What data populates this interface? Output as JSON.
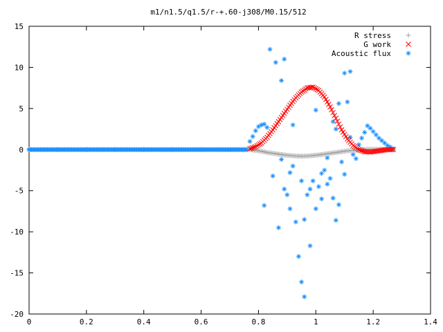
{
  "chart_data": {
    "type": "scatter",
    "title": "m1/n1.5/q1.5/r-+.60-j308/M0.15/512",
    "xlim": [
      0,
      1.4
    ],
    "ylim": [
      -20,
      15
    ],
    "x_ticks": [
      "0",
      "0.2",
      "0.4",
      "0.6",
      "0.8",
      "1",
      "1.2",
      "1.4"
    ],
    "y_ticks": [
      "15",
      "10",
      "5",
      "0",
      "-5",
      "-10",
      "-15",
      "-20"
    ],
    "legend_position": "top-right",
    "grid": false,
    "series": [
      {
        "name": "R stress",
        "marker": "+",
        "color": "#a0a0a0",
        "points": [
          [
            0.77,
            0.0
          ],
          [
            0.79,
            -0.1
          ],
          [
            0.81,
            -0.2
          ],
          [
            0.83,
            -0.35
          ],
          [
            0.85,
            -0.45
          ],
          [
            0.87,
            -0.55
          ],
          [
            0.89,
            -0.65
          ],
          [
            0.91,
            -0.72
          ],
          [
            0.93,
            -0.78
          ],
          [
            0.95,
            -0.8
          ],
          [
            0.97,
            -0.78
          ],
          [
            0.99,
            -0.72
          ],
          [
            1.01,
            -0.65
          ],
          [
            1.03,
            -0.55
          ],
          [
            1.05,
            -0.45
          ],
          [
            1.07,
            -0.35
          ],
          [
            1.09,
            -0.25
          ],
          [
            1.11,
            -0.15
          ],
          [
            1.13,
            -0.1
          ],
          [
            1.15,
            -0.05
          ],
          [
            1.17,
            0.0
          ],
          [
            1.19,
            0.05
          ],
          [
            1.21,
            0.05
          ],
          [
            1.23,
            0.05
          ],
          [
            1.25,
            0.02
          ],
          [
            1.27,
            0.0
          ]
        ]
      },
      {
        "name": "G work",
        "marker": "x",
        "color": "#ff0000",
        "points": [
          [
            0.77,
            0.1
          ],
          [
            0.79,
            0.35
          ],
          [
            0.81,
            0.8
          ],
          [
            0.83,
            1.5
          ],
          [
            0.85,
            2.4
          ],
          [
            0.87,
            3.4
          ],
          [
            0.89,
            4.4
          ],
          [
            0.91,
            5.4
          ],
          [
            0.93,
            6.3
          ],
          [
            0.95,
            7.0
          ],
          [
            0.97,
            7.5
          ],
          [
            0.99,
            7.6
          ],
          [
            1.01,
            7.2
          ],
          [
            1.03,
            6.4
          ],
          [
            1.05,
            5.2
          ],
          [
            1.07,
            3.8
          ],
          [
            1.09,
            2.4
          ],
          [
            1.11,
            1.3
          ],
          [
            1.13,
            0.5
          ],
          [
            1.15,
            0.0
          ],
          [
            1.17,
            -0.25
          ],
          [
            1.19,
            -0.3
          ],
          [
            1.21,
            -0.2
          ],
          [
            1.23,
            -0.1
          ],
          [
            1.25,
            0.0
          ],
          [
            1.27,
            0.0
          ]
        ]
      },
      {
        "name": "Acoustic flux",
        "marker": "*",
        "color": "#1e90ff",
        "points": [
          [
            0.0,
            0.0
          ],
          [
            0.1,
            0.0
          ],
          [
            0.2,
            0.0
          ],
          [
            0.3,
            0.0
          ],
          [
            0.4,
            0.0
          ],
          [
            0.5,
            0.0
          ],
          [
            0.6,
            0.0
          ],
          [
            0.7,
            0.0
          ],
          [
            0.76,
            0.0
          ],
          [
            0.77,
            1.0
          ],
          [
            0.78,
            1.6
          ],
          [
            0.79,
            2.3
          ],
          [
            0.8,
            2.8
          ],
          [
            0.81,
            3.0
          ],
          [
            0.82,
            3.1
          ],
          [
            0.83,
            2.7
          ],
          [
            0.84,
            12.2
          ],
          [
            0.85,
            -3.2
          ],
          [
            0.86,
            10.6
          ],
          [
            0.87,
            -9.5
          ],
          [
            0.88,
            8.4
          ],
          [
            0.89,
            11.0
          ],
          [
            0.9,
            -5.5
          ],
          [
            0.91,
            -2.8
          ],
          [
            0.92,
            3.0
          ],
          [
            0.93,
            -8.8
          ],
          [
            0.94,
            -13.0
          ],
          [
            0.95,
            -16.1
          ],
          [
            0.96,
            -17.9
          ],
          [
            0.97,
            -5.5
          ],
          [
            0.98,
            -11.7
          ],
          [
            0.99,
            -3.8
          ],
          [
            1.0,
            -7.2
          ],
          [
            1.01,
            -4.5
          ],
          [
            1.02,
            -6.0
          ],
          [
            1.03,
            -2.5
          ],
          [
            1.04,
            -1.0
          ],
          [
            1.05,
            -3.5
          ],
          [
            1.06,
            -5.9
          ],
          [
            1.07,
            -8.6
          ],
          [
            1.08,
            -6.7
          ],
          [
            1.09,
            -1.5
          ],
          [
            1.1,
            9.3
          ],
          [
            1.11,
            5.8
          ],
          [
            1.12,
            1.5
          ],
          [
            1.13,
            -0.6
          ],
          [
            1.14,
            -1.1
          ],
          [
            1.15,
            0.6
          ],
          [
            1.16,
            1.4
          ],
          [
            1.17,
            2.1
          ],
          [
            1.18,
            2.9
          ],
          [
            1.19,
            2.6
          ],
          [
            1.2,
            2.2
          ],
          [
            1.21,
            1.8
          ],
          [
            1.22,
            1.4
          ],
          [
            1.23,
            1.1
          ],
          [
            1.24,
            0.8
          ],
          [
            1.25,
            0.5
          ],
          [
            1.26,
            0.3
          ],
          [
            1.27,
            0.1
          ],
          [
            1.0,
            4.8
          ],
          [
            0.95,
            -3.8
          ],
          [
            0.88,
            -1.2
          ],
          [
            1.07,
            2.5
          ],
          [
            0.96,
            -8.5
          ],
          [
            1.04,
            -4.2
          ],
          [
            1.02,
            -2.9
          ],
          [
            0.98,
            -4.8
          ],
          [
            0.91,
            -7.2
          ],
          [
            1.12,
            9.5
          ],
          [
            0.92,
            -2.0
          ],
          [
            1.08,
            5.6
          ],
          [
            1.1,
            -3.0
          ],
          [
            1.06,
            3.4
          ],
          [
            0.89,
            -4.8
          ],
          [
            0.82,
            -6.8
          ]
        ]
      }
    ]
  }
}
